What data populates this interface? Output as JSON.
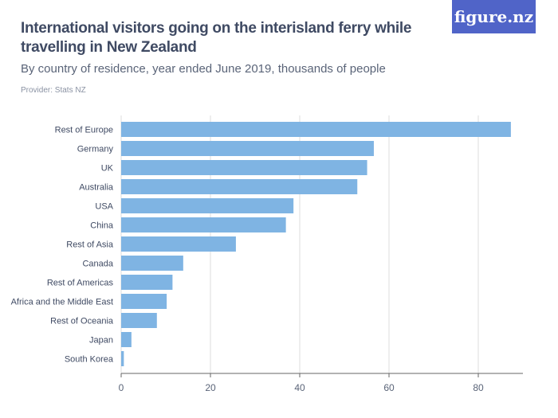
{
  "header": {
    "title": "International visitors going on the interisland ferry while travelling in New Zealand",
    "subtitle": "By country of residence, year ended June 2019, thousands of people",
    "provider": "Provider: Stats NZ",
    "logo": "figure.nz"
  },
  "chart_data": {
    "type": "bar",
    "orientation": "horizontal",
    "categories": [
      "Rest of Europe",
      "Germany",
      "UK",
      "Australia",
      "USA",
      "China",
      "Rest of Asia",
      "Canada",
      "Rest of Americas",
      "Africa and the Middle East",
      "Rest of Oceania",
      "Japan",
      "South Korea"
    ],
    "values": [
      87.3,
      56.6,
      55.1,
      52.9,
      38.6,
      36.9,
      25.7,
      13.9,
      11.5,
      10.2,
      8.0,
      2.3,
      0.6
    ],
    "xlim": [
      0,
      90
    ],
    "xticks": [
      0,
      20,
      40,
      60,
      80
    ],
    "grid": true,
    "bar_color": "#7fb4e3",
    "title": "",
    "xlabel": "",
    "ylabel": ""
  }
}
